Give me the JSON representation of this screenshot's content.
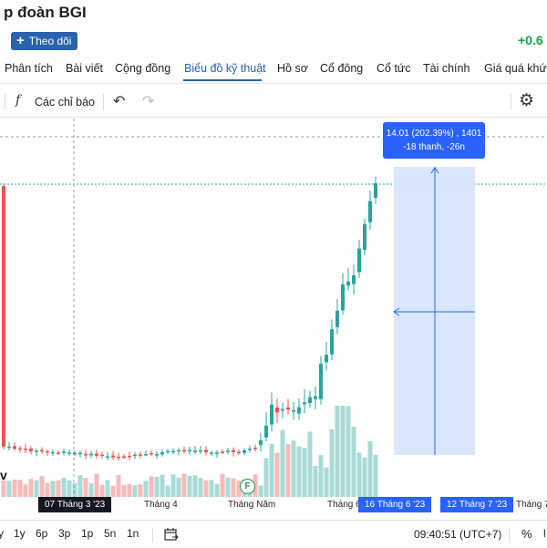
{
  "header": {
    "title": "p đoàn BGI",
    "follow_label": "Theo dõi",
    "change": "+0.6"
  },
  "tabs": [
    {
      "label": "Phân tích"
    },
    {
      "label": "Bài viết"
    },
    {
      "label": "Cộng đồng"
    },
    {
      "label": "Biểu đồ kỹ thuật",
      "active": true
    },
    {
      "label": "Hồ sơ"
    },
    {
      "label": "Cổ đông"
    },
    {
      "label": "Cổ tức"
    },
    {
      "label": "Tài chính"
    },
    {
      "label": "Giá quá khứ"
    }
  ],
  "toolbar": {
    "indicators_label": "Các chỉ báo",
    "fx_symbol": "f",
    "undo_icon": "undo-icon",
    "redo_icon": "redo-icon",
    "settings_icon": "gear-icon"
  },
  "chart": {
    "tooltip_line1": "14.01 (202.39%) , 1401",
    "tooltip_line2": "-18 thanh, -26n",
    "x_axis": {
      "label_mar": "07 Tháng 3 '23",
      "label_apr": "Tháng 4",
      "label_may": "Tháng Năm",
      "label_jun": "Tháng 6",
      "range_start": "16 Tháng 6 '23",
      "range_end": "12 Tháng 7 '23",
      "label_jul": "Tháng 7"
    },
    "left_marker": "v",
    "event_marker": "F",
    "colors": {
      "up": "#26a69a",
      "down": "#ef5350",
      "measure_fill": "#d6e4fb",
      "measure_line": "#2962ff"
    }
  },
  "bottom_bar": {
    "ranges": [
      "y",
      "1y",
      "6p",
      "3p",
      "1p",
      "5n",
      "1n"
    ],
    "calendar_icon": "calendar-range-icon",
    "time": "09:40:51 (UTC+7)",
    "percent": "%",
    "more": "l"
  }
}
